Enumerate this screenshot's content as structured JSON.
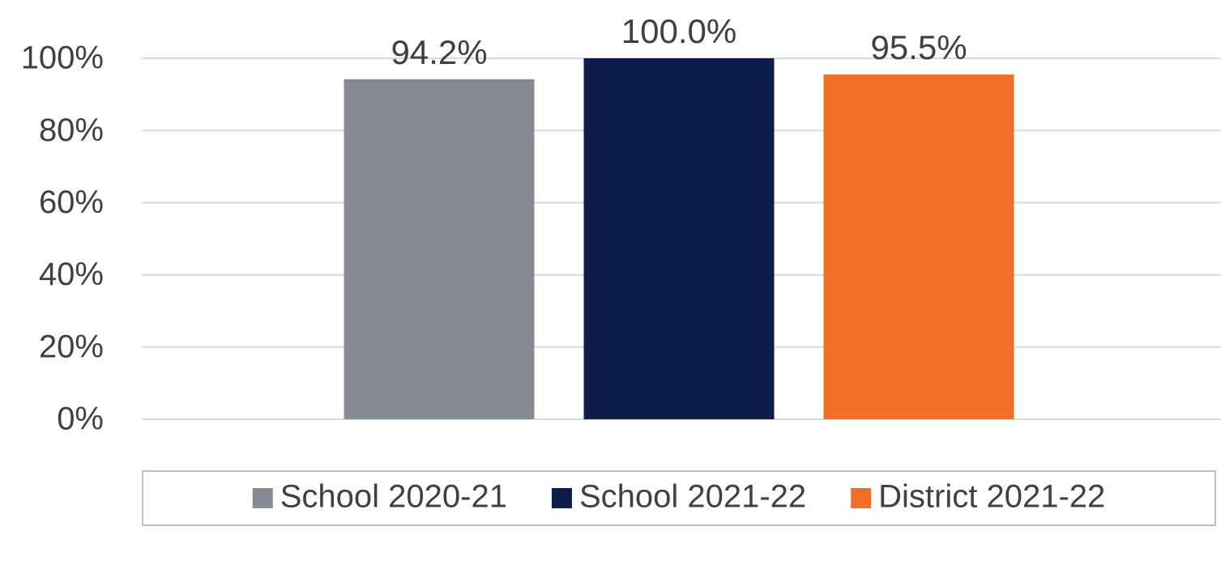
{
  "chart_data": {
    "type": "bar",
    "categories": [
      null
    ],
    "series": [
      {
        "name": "School 2020-21",
        "color": "#858a93",
        "values": [
          94.2
        ],
        "value_labels": [
          "94.2%"
        ]
      },
      {
        "name": "School 2021-22",
        "color": "#0f1d4a",
        "values": [
          100.0
        ],
        "value_labels": [
          "100.0%"
        ]
      },
      {
        "name": "District 2021-22",
        "color": "#ef6f27",
        "values": [
          95.5
        ],
        "value_labels": [
          "95.5%"
        ]
      }
    ],
    "ylim": [
      0,
      100
    ],
    "yticks": [
      {
        "value": 0,
        "label": "0%"
      },
      {
        "value": 20,
        "label": "20%"
      },
      {
        "value": 40,
        "label": "40%"
      },
      {
        "value": 60,
        "label": "60%"
      },
      {
        "value": 80,
        "label": "80%"
      },
      {
        "value": 100,
        "label": "100%"
      }
    ],
    "grid": true,
    "legend": "bottom"
  }
}
